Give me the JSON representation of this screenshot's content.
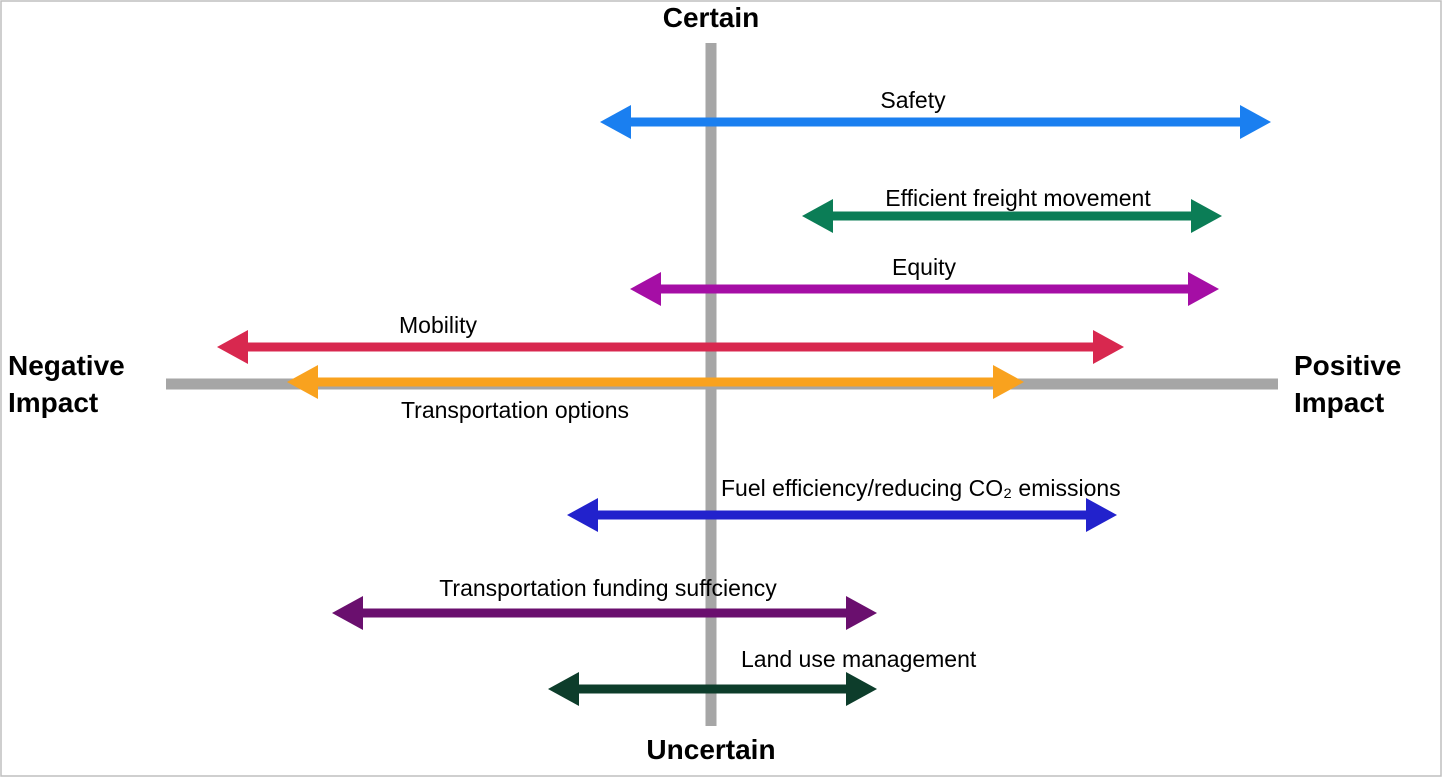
{
  "axes": {
    "top_label": "Certain",
    "bottom_label": "Uncertain",
    "left_label_line1": "Negative",
    "left_label_line2": "Impact",
    "right_label_line1": "Positive",
    "right_label_line2": "Impact",
    "axis_color": "#a6a6a6"
  },
  "arrows": [
    {
      "id": "safety",
      "label": "Safety",
      "color": "#1a7ff0"
    },
    {
      "id": "efficient-freight-movement",
      "label": "Efficient freight movement",
      "color": "#0b7d56"
    },
    {
      "id": "equity",
      "label": "Equity",
      "color": "#a50ea5"
    },
    {
      "id": "mobility",
      "label": "Mobility",
      "color": "#d8284f"
    },
    {
      "id": "transportation-options",
      "label": "Transportation options",
      "color": "#f9a21e"
    },
    {
      "id": "fuel-efficiency",
      "label": "Fuel efficiency/reducing CO₂ emissions",
      "color": "#2222cc"
    },
    {
      "id": "transportation-funding",
      "label": "Transportation funding suffciency",
      "color": "#6a0f6e"
    },
    {
      "id": "land-use-management",
      "label": "Land use management",
      "color": "#0d3d2b"
    }
  ]
}
